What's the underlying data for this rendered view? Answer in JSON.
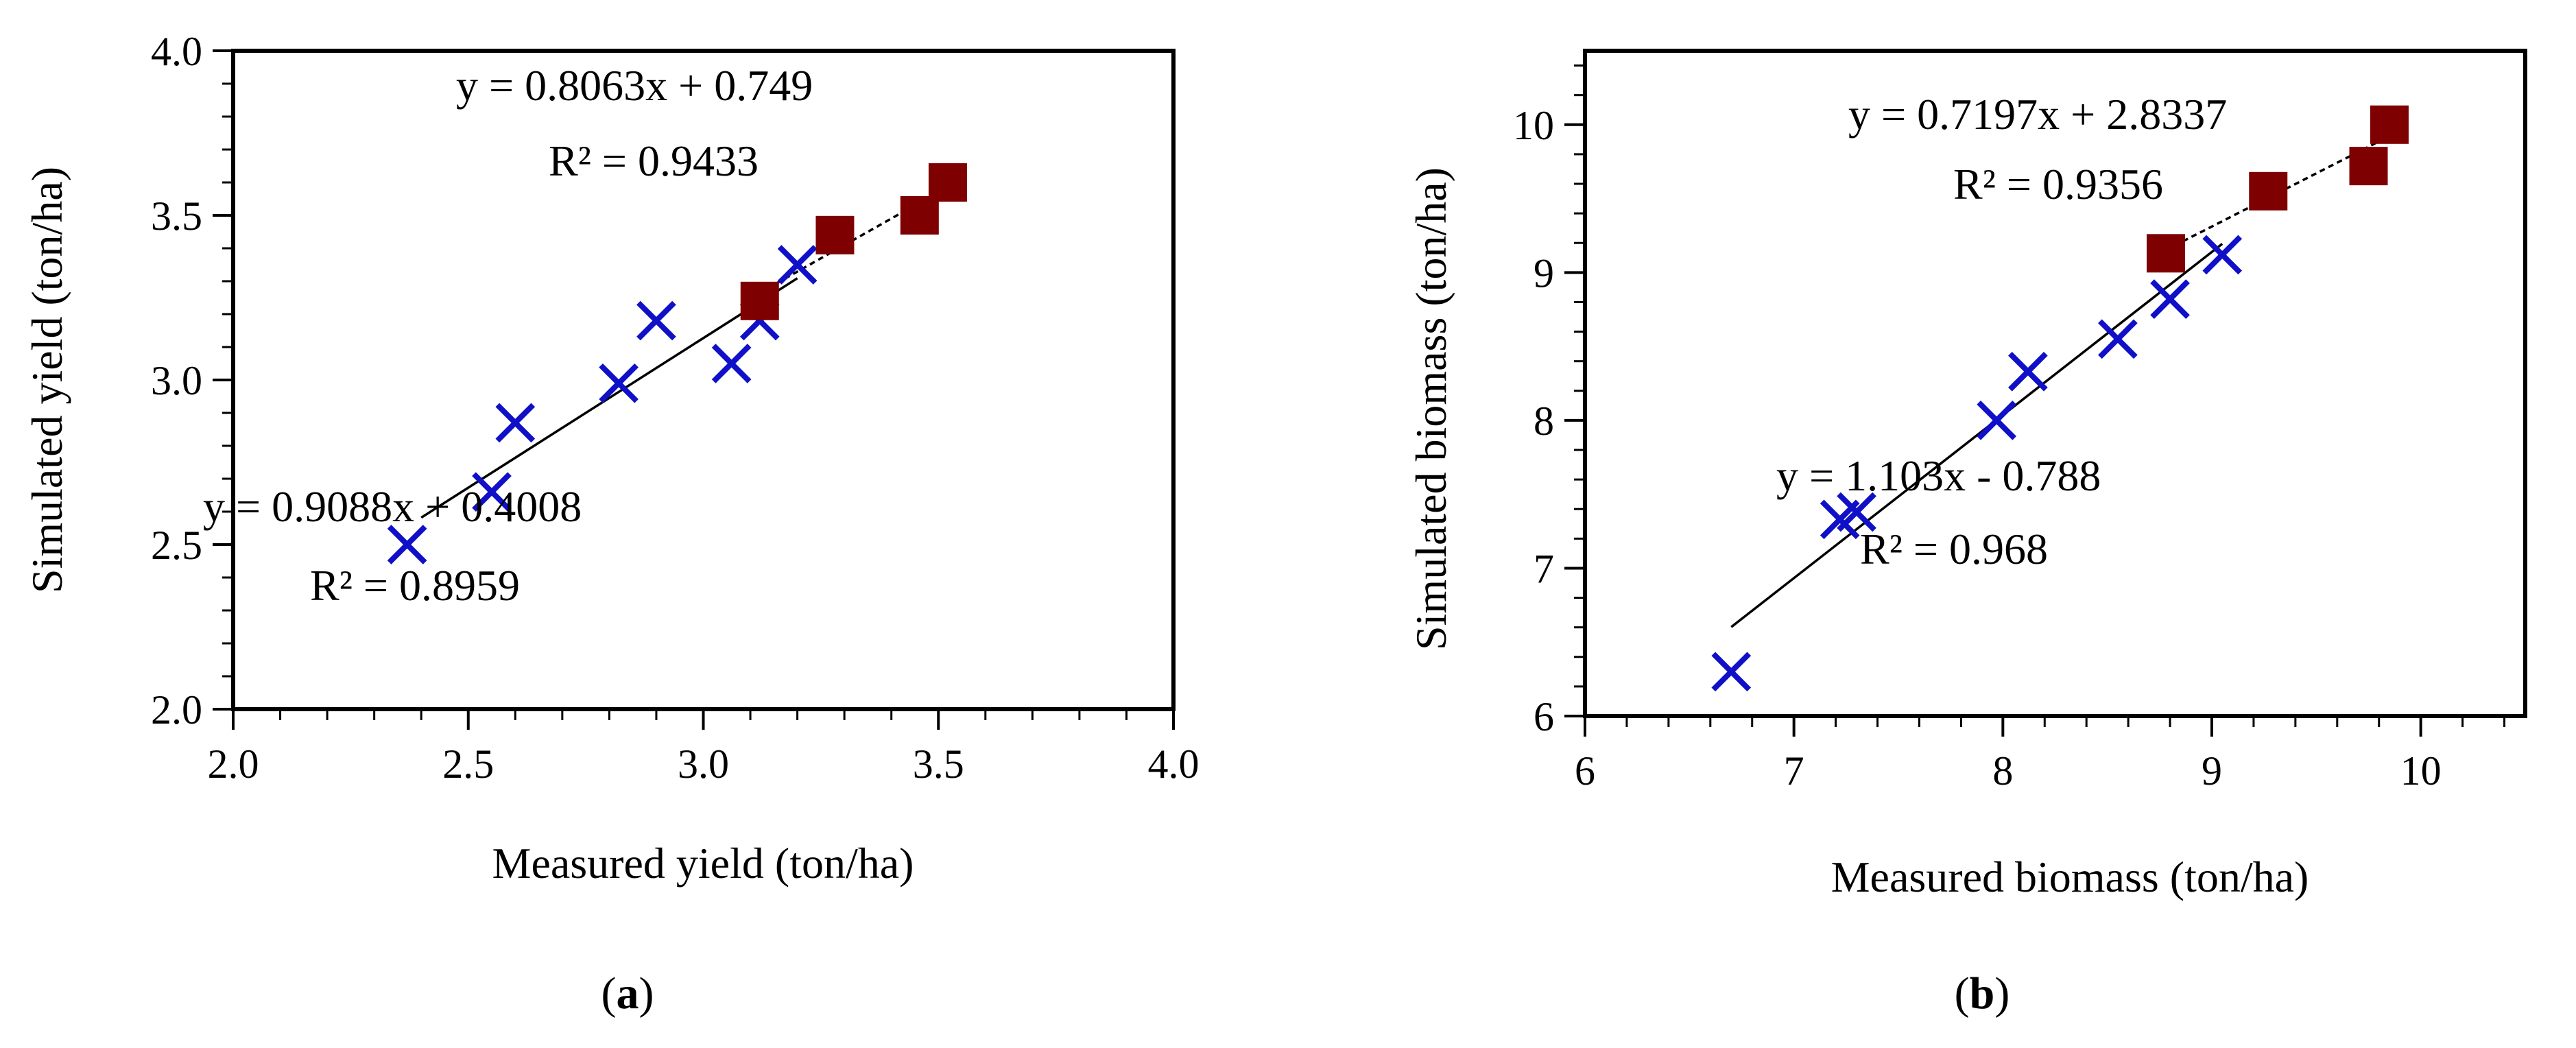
{
  "chart_data": [
    {
      "type": "scatter",
      "panel_label": "a",
      "xlabel": "Measured yield (ton/ha)",
      "ylabel": "Simulated yield (ton/ha)",
      "xlim": [
        2.0,
        4.0
      ],
      "ylim": [
        2.0,
        4.0
      ],
      "xticks": [
        "2.0",
        "2.5",
        "3.0",
        "3.5",
        "4.0"
      ],
      "yticks": [
        "2.0",
        "2.5",
        "3.0",
        "3.5",
        "4.0"
      ],
      "xtick_values": [
        2.0,
        2.5,
        3.0,
        3.5,
        4.0
      ],
      "ytick_values": [
        2.0,
        2.5,
        3.0,
        3.5,
        4.0
      ],
      "minor_step": 0.1,
      "series": [
        {
          "name": "cross",
          "marker": "x",
          "color": "#1010c8",
          "points": [
            [
              2.37,
              2.5
            ],
            [
              2.55,
              2.66
            ],
            [
              2.6,
              2.87
            ],
            [
              2.82,
              2.99
            ],
            [
              2.9,
              3.18
            ],
            [
              3.06,
              3.05
            ],
            [
              3.12,
              3.18
            ],
            [
              3.2,
              3.35
            ]
          ]
        },
        {
          "name": "square",
          "marker": "square",
          "color": "#7f0000",
          "points": [
            [
              3.12,
              3.24
            ],
            [
              3.28,
              3.44
            ],
            [
              3.46,
              3.5
            ],
            [
              3.52,
              3.6
            ]
          ]
        }
      ],
      "trendlines": [
        {
          "name": "cross-fit",
          "style": "solid",
          "slope": 0.9088,
          "intercept": 0.4008,
          "x_range": [
            2.4,
            3.2
          ],
          "equation": "y = 0.9088x + 0.4008",
          "r2": "R² = 0.8959"
        },
        {
          "name": "square-fit",
          "style": "dashed",
          "slope": 0.8063,
          "intercept": 0.749,
          "x_range": [
            3.12,
            3.52
          ],
          "equation": "y = 0.8063x + 0.749",
          "r2": "R² = 0.9433"
        }
      ]
    },
    {
      "type": "scatter",
      "panel_label": "b",
      "xlabel": "Measured biomass (ton/ha)",
      "ylabel": "Simulated biomass (ton/ha)",
      "xlim": [
        6,
        10.5
      ],
      "ylim": [
        6,
        10.5
      ],
      "xticks": [
        "6",
        "7",
        "8",
        "9",
        "10"
      ],
      "yticks": [
        "6",
        "7",
        "8",
        "9",
        "10"
      ],
      "xtick_values": [
        6,
        7,
        8,
        9,
        10
      ],
      "ytick_values": [
        6,
        7,
        8,
        9,
        10
      ],
      "minor_step": 0.2,
      "series": [
        {
          "name": "cross",
          "marker": "x",
          "color": "#1010c8",
          "points": [
            [
              6.7,
              6.3
            ],
            [
              7.22,
              7.33
            ],
            [
              7.3,
              7.38
            ],
            [
              7.97,
              8.0
            ],
            [
              8.12,
              8.33
            ],
            [
              8.55,
              8.55
            ],
            [
              8.8,
              8.82
            ],
            [
              9.05,
              9.12
            ]
          ]
        },
        {
          "name": "square",
          "marker": "square",
          "color": "#7f0000",
          "points": [
            [
              8.78,
              9.13
            ],
            [
              9.27,
              9.55
            ],
            [
              9.75,
              9.72
            ],
            [
              9.85,
              10.0
            ]
          ]
        }
      ],
      "trendlines": [
        {
          "name": "cross-fit",
          "style": "solid",
          "slope": 1.103,
          "intercept": -0.788,
          "x_range": [
            6.7,
            9.05
          ],
          "equation": "y = 1.103x - 0.788",
          "r2": "R² = 0.968"
        },
        {
          "name": "square-fit",
          "style": "dashed",
          "slope": 0.7197,
          "intercept": 2.8337,
          "x_range": [
            8.78,
            9.85
          ],
          "equation": "y = 0.7197x + 2.8337",
          "r2": "R² = 0.9356"
        }
      ]
    }
  ]
}
